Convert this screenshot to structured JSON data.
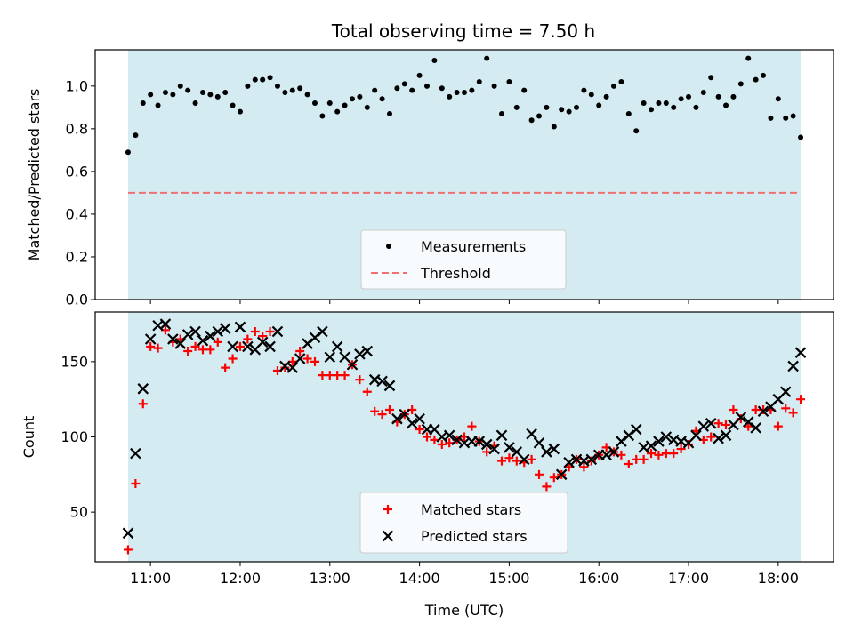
{
  "figure": {
    "title": "Total observing time = 7.50 h",
    "observing_window": {
      "start": "10:45",
      "end": "18:15",
      "color": "#add8e6"
    }
  },
  "chart_data": [
    {
      "type": "scatter",
      "ylabel": "Matched/Predicted stars",
      "ylim": [
        0,
        1.17
      ],
      "yticks": [
        0.0,
        0.2,
        0.4,
        0.6,
        0.8,
        1.0
      ],
      "ytick_labels": [
        "0.0",
        "0.2",
        "0.4",
        "0.6",
        "0.8",
        "1.0"
      ],
      "grid": false,
      "legend_placement": "lower center",
      "series": [
        {
          "name": "Measurements",
          "kind": "points",
          "color": "#000000",
          "x": [
            "10:45",
            "10:50",
            "10:55",
            "11:00",
            "11:05",
            "11:10",
            "11:15",
            "11:20",
            "11:25",
            "11:30",
            "11:35",
            "11:40",
            "11:45",
            "11:50",
            "11:55",
            "12:00",
            "12:05",
            "12:10",
            "12:15",
            "12:20",
            "12:25",
            "12:30",
            "12:35",
            "12:40",
            "12:45",
            "12:50",
            "12:55",
            "13:00",
            "13:05",
            "13:10",
            "13:15",
            "13:20",
            "13:25",
            "13:30",
            "13:35",
            "13:40",
            "13:45",
            "13:50",
            "13:55",
            "14:00",
            "14:05",
            "14:10",
            "14:15",
            "14:20",
            "14:25",
            "14:30",
            "14:35",
            "14:40",
            "14:45",
            "14:50",
            "14:55",
            "15:00",
            "15:05",
            "15:10",
            "15:15",
            "15:20",
            "15:25",
            "15:30",
            "15:35",
            "15:40",
            "15:45",
            "15:50",
            "15:55",
            "16:00",
            "16:05",
            "16:10",
            "16:15",
            "16:20",
            "16:25",
            "16:30",
            "16:35",
            "16:40",
            "16:45",
            "16:50",
            "16:55",
            "17:00",
            "17:05",
            "17:10",
            "17:15",
            "17:20",
            "17:25",
            "17:30",
            "17:35",
            "17:40",
            "17:45",
            "17:50",
            "17:55",
            "18:00",
            "18:05",
            "18:10",
            "18:15"
          ],
          "y": [
            0.69,
            0.77,
            0.92,
            0.96,
            0.91,
            0.97,
            0.96,
            1.0,
            0.98,
            0.92,
            0.97,
            0.96,
            0.95,
            0.97,
            0.91,
            0.88,
            1.0,
            1.03,
            1.03,
            1.04,
            1.0,
            0.97,
            0.98,
            0.99,
            0.96,
            0.92,
            0.86,
            0.92,
            0.88,
            0.91,
            0.94,
            0.95,
            0.9,
            0.98,
            0.94,
            0.87,
            0.99,
            1.01,
            0.98,
            1.05,
            1.0,
            1.12,
            0.99,
            0.95,
            0.97,
            0.97,
            0.98,
            1.02,
            1.13,
            1.0,
            0.87,
            1.02,
            0.9,
            0.98,
            0.84,
            0.86,
            0.9,
            0.81,
            0.89,
            0.88,
            0.9,
            0.98,
            0.96,
            0.91,
            0.95,
            1.0,
            1.02,
            0.87,
            0.79,
            0.92,
            0.89,
            0.92,
            0.92,
            0.9,
            0.94,
            0.95,
            0.9,
            0.97,
            1.04,
            0.95,
            0.91,
            0.95,
            1.01,
            1.13,
            1.03,
            1.05,
            0.85,
            0.94,
            0.85,
            0.86,
            0.76
          ]
        },
        {
          "name": "Threshold",
          "kind": "hline",
          "y": 0.5,
          "x_start": "10:45",
          "x_end": "18:15",
          "color": "#f07070"
        }
      ]
    },
    {
      "type": "scatter",
      "xlabel": "Time (UTC)",
      "ylabel": "Count",
      "xlim": [
        "10:23",
        "18:37"
      ],
      "ylim": [
        17,
        183
      ],
      "xticks": [
        "11:00",
        "12:00",
        "13:00",
        "14:00",
        "15:00",
        "16:00",
        "17:00",
        "18:00"
      ],
      "yticks": [
        50,
        100,
        150
      ],
      "ytick_labels": [
        "50",
        "100",
        "150"
      ],
      "grid": false,
      "legend_placement": "lower center",
      "series": [
        {
          "name": "Matched stars",
          "marker": "plus",
          "color": "#ff0000",
          "x": [
            "10:45",
            "10:50",
            "10:55",
            "11:00",
            "11:05",
            "11:10",
            "11:15",
            "11:20",
            "11:25",
            "11:30",
            "11:35",
            "11:40",
            "11:45",
            "11:50",
            "11:55",
            "12:00",
            "12:05",
            "12:10",
            "12:15",
            "12:20",
            "12:25",
            "12:30",
            "12:35",
            "12:40",
            "12:45",
            "12:50",
            "12:55",
            "13:00",
            "13:05",
            "13:10",
            "13:15",
            "13:20",
            "13:25",
            "13:30",
            "13:35",
            "13:40",
            "13:45",
            "13:50",
            "13:55",
            "14:00",
            "14:05",
            "14:10",
            "14:15",
            "14:20",
            "14:25",
            "14:30",
            "14:35",
            "14:40",
            "14:45",
            "14:50",
            "14:55",
            "15:00",
            "15:05",
            "15:10",
            "15:15",
            "15:20",
            "15:25",
            "15:30",
            "15:35",
            "15:40",
            "15:45",
            "15:50",
            "15:55",
            "16:00",
            "16:05",
            "16:10",
            "16:15",
            "16:20",
            "16:25",
            "16:30",
            "16:35",
            "16:40",
            "16:45",
            "16:50",
            "16:55",
            "17:00",
            "17:05",
            "17:10",
            "17:15",
            "17:20",
            "17:25",
            "17:30",
            "17:35",
            "17:40",
            "17:45",
            "17:50",
            "17:55",
            "18:00",
            "18:05",
            "18:10",
            "18:15"
          ],
          "y": [
            25,
            69,
            122,
            160,
            159,
            171,
            163,
            165,
            157,
            160,
            158,
            158,
            163,
            146,
            152,
            160,
            165,
            170,
            167,
            170,
            144,
            146,
            150,
            157,
            152,
            150,
            141,
            141,
            141,
            141,
            148,
            138,
            130,
            117,
            115,
            118,
            110,
            115,
            118,
            105,
            100,
            98,
            95,
            96,
            98,
            100,
            107,
            97,
            90,
            94,
            84,
            86,
            84,
            83,
            85,
            75,
            67,
            73,
            75,
            80,
            85,
            80,
            84,
            88,
            93,
            90,
            88,
            82,
            85,
            85,
            89,
            88,
            89,
            89,
            92,
            95,
            104,
            98,
            100,
            109,
            108,
            118,
            112,
            107,
            118,
            118,
            118,
            107,
            119,
            116,
            125
          ]
        },
        {
          "name": "Predicted stars",
          "marker": "x",
          "color": "#000000",
          "x": [
            "10:45",
            "10:50",
            "10:55",
            "11:00",
            "11:05",
            "11:10",
            "11:15",
            "11:20",
            "11:25",
            "11:30",
            "11:35",
            "11:40",
            "11:45",
            "11:50",
            "11:55",
            "12:00",
            "12:05",
            "12:10",
            "12:15",
            "12:20",
            "12:25",
            "12:30",
            "12:35",
            "12:40",
            "12:45",
            "12:50",
            "12:55",
            "13:00",
            "13:05",
            "13:10",
            "13:15",
            "13:20",
            "13:25",
            "13:30",
            "13:35",
            "13:40",
            "13:45",
            "13:50",
            "13:55",
            "14:00",
            "14:05",
            "14:10",
            "14:15",
            "14:20",
            "14:25",
            "14:30",
            "14:35",
            "14:40",
            "14:45",
            "14:50",
            "14:55",
            "15:00",
            "15:05",
            "15:10",
            "15:15",
            "15:20",
            "15:25",
            "15:30",
            "15:35",
            "15:40",
            "15:45",
            "15:50",
            "15:55",
            "16:00",
            "16:05",
            "16:10",
            "16:15",
            "16:20",
            "16:25",
            "16:30",
            "16:35",
            "16:40",
            "16:45",
            "16:50",
            "16:55",
            "17:00",
            "17:05",
            "17:10",
            "17:15",
            "17:20",
            "17:25",
            "17:30",
            "17:35",
            "17:40",
            "17:45",
            "17:50",
            "17:55",
            "18:00",
            "18:05",
            "18:10",
            "18:15"
          ],
          "y": [
            36,
            89,
            132,
            165,
            174,
            175,
            165,
            162,
            168,
            170,
            164,
            167,
            170,
            172,
            160,
            173,
            160,
            158,
            163,
            160,
            170,
            147,
            146,
            152,
            162,
            166,
            170,
            153,
            160,
            153,
            148,
            155,
            157,
            138,
            137,
            134,
            112,
            115,
            109,
            112,
            105,
            105,
            100,
            101,
            98,
            96,
            97,
            97,
            95,
            92,
            101,
            93,
            90,
            85,
            102,
            96,
            90,
            92,
            75,
            83,
            85,
            84,
            85,
            88,
            88,
            90,
            97,
            101,
            105,
            93,
            94,
            97,
            100,
            98,
            97,
            96,
            101,
            107,
            109,
            99,
            101,
            108,
            113,
            110,
            106,
            117,
            120,
            125,
            130,
            147,
            156
          ]
        }
      ]
    }
  ]
}
